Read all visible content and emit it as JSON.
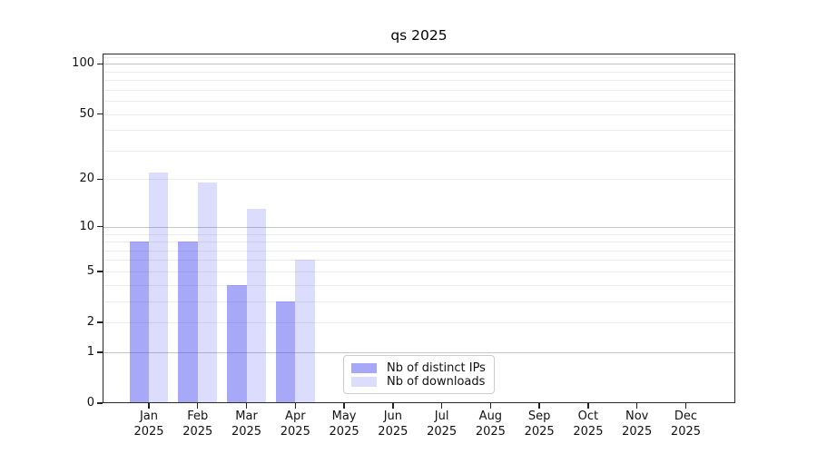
{
  "chart_data": {
    "type": "bar",
    "title": "qs 2025",
    "categories": [
      "Jan",
      "Feb",
      "Mar",
      "Apr",
      "May",
      "Jun",
      "Jul",
      "Aug",
      "Sep",
      "Oct",
      "Nov",
      "Dec"
    ],
    "x_year": "2025",
    "series": [
      {
        "name": "Nb of distinct IPs",
        "values": [
          8,
          8,
          4,
          3,
          null,
          null,
          null,
          null,
          null,
          null,
          null,
          null
        ]
      },
      {
        "name": "Nb of downloads",
        "values": [
          22,
          19,
          13,
          6,
          null,
          null,
          null,
          null,
          null,
          null,
          null,
          null
        ]
      }
    ],
    "y_scale": "log1p",
    "ylim": [
      0,
      115
    ],
    "y_ticks": [
      0,
      1,
      2,
      5,
      10,
      20,
      50,
      100
    ],
    "y_major_gridlines": [
      1,
      10,
      100
    ],
    "y_minor_gridlines": [
      2,
      3,
      4,
      5,
      6,
      7,
      8,
      9,
      20,
      30,
      40,
      50,
      60,
      70,
      80,
      90,
      110
    ],
    "grid": true,
    "legend_position": "inside lower center"
  },
  "colors": {
    "bar_distinct_ips": "rgba(62,62,240,0.45)",
    "bar_downloads": "rgba(62,62,240,0.18)",
    "grid_major": "#c6c6c6",
    "grid_minor": "#ececec",
    "spine": "#2a2a2a"
  }
}
